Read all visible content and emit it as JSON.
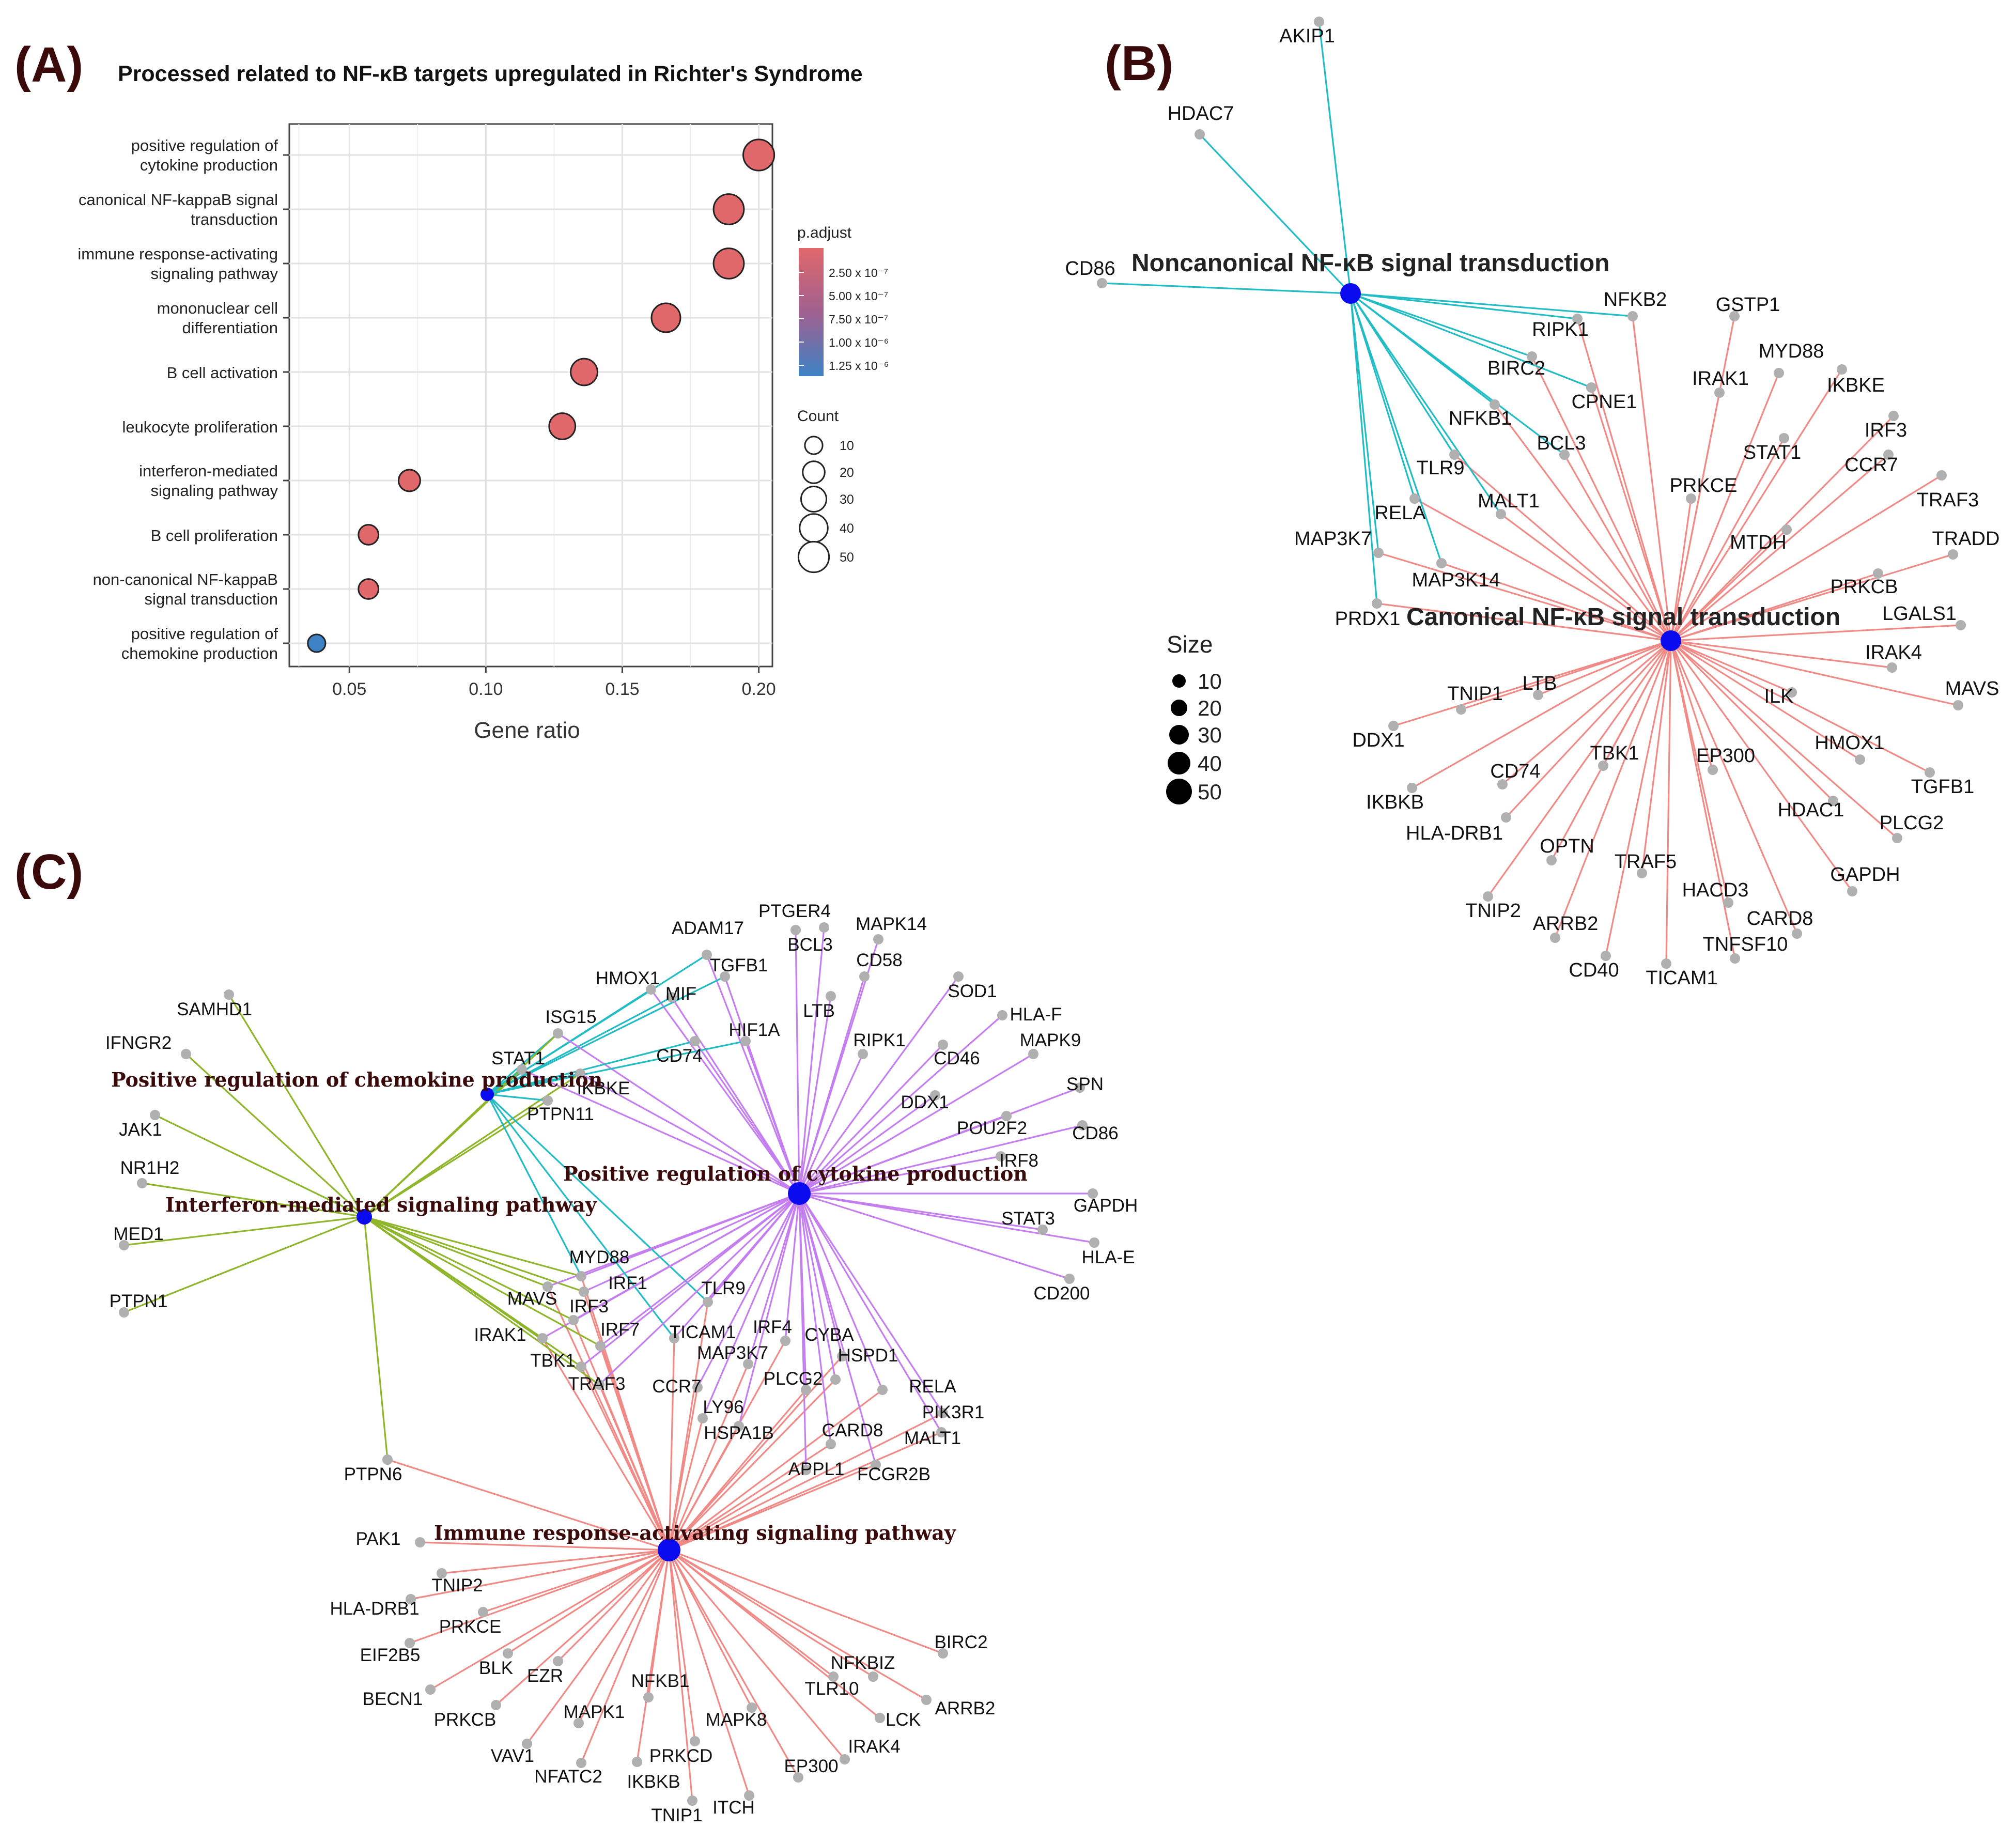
{
  "panels": {
    "a_letter": "(A)",
    "b_letter": "(B)",
    "c_letter": "(C)"
  },
  "panel_a": {
    "title": "Processed related to NF-κB targets upregulated in Richter's Syndrome",
    "legend_color_title": "p.adjust",
    "legend_color_ticks": [
      "2.50 x 10⁻⁷",
      "5.00 x 10⁻⁷",
      "7.50 x 10⁻⁷",
      "1.00 x 10⁻⁶",
      "1.25 x 10⁻⁶"
    ],
    "legend_size_title": "Count",
    "legend_size_ticks": [
      "10",
      "20",
      "30",
      "40",
      "50"
    ]
  },
  "chart_data": [
    {
      "type": "scatter",
      "subtype": "dot-plot",
      "title": "Processed related to NF-κB targets upregulated in Richter's Syndrome",
      "xlabel": "Gene ratio",
      "ylabel": "",
      "xlim": [
        0.028,
        0.205
      ],
      "xticks": [
        0.05,
        0.1,
        0.15,
        0.2
      ],
      "xtick_labels": [
        "0.05",
        "0.10",
        "0.15",
        "0.20"
      ],
      "grid": true,
      "points": [
        {
          "label_lines": [
            "positive regulation of",
            "cytokine production"
          ],
          "gene_ratio": 0.2,
          "count": 52,
          "p_adjust": 1e-07
        },
        {
          "label_lines": [
            "canonical NF-kappaB signal",
            "transduction"
          ],
          "gene_ratio": 0.189,
          "count": 49,
          "p_adjust": 1e-07
        },
        {
          "label_lines": [
            "immune response-activating",
            "signaling pathway"
          ],
          "gene_ratio": 0.189,
          "count": 49,
          "p_adjust": 1e-07
        },
        {
          "label_lines": [
            "mononuclear cell",
            "differentiation"
          ],
          "gene_ratio": 0.166,
          "count": 43,
          "p_adjust": 1e-07
        },
        {
          "label_lines": [
            "B cell activation"
          ],
          "gene_ratio": 0.136,
          "count": 35,
          "p_adjust": 1e-07
        },
        {
          "label_lines": [
            "leukocyte proliferation"
          ],
          "gene_ratio": 0.128,
          "count": 33,
          "p_adjust": 1e-07
        },
        {
          "label_lines": [
            "interferon-mediated",
            "signaling pathway"
          ],
          "gene_ratio": 0.072,
          "count": 19,
          "p_adjust": 1e-07
        },
        {
          "label_lines": [
            "B cell proliferation"
          ],
          "gene_ratio": 0.057,
          "count": 15,
          "p_adjust": 1e-07
        },
        {
          "label_lines": [
            "non-canonical NF-kappaB",
            "signal transduction"
          ],
          "gene_ratio": 0.057,
          "count": 15,
          "p_adjust": 1e-07
        },
        {
          "label_lines": [
            "positive regulation of",
            "chemokine production"
          ],
          "gene_ratio": 0.038,
          "count": 10,
          "p_adjust": 1.35e-06
        }
      ],
      "colors": {
        "low_p": "#e0676a",
        "high_p": "#3d82c4"
      }
    }
  ],
  "panel_b": {
    "size_legend_title": "Size",
    "size_legend_values": [
      "10",
      "20",
      "30",
      "40",
      "50"
    ],
    "hubs": [
      {
        "id": "noncanonical",
        "label": "Noncanonical NF-κB signal transduction",
        "edge_color": "#22bcc4"
      },
      {
        "id": "canonical",
        "label": "Canonical NF-κB signal transduction",
        "edge_color": "#f08a86"
      }
    ],
    "genes": [
      {
        "name": "AKIP1",
        "hubs": [
          "noncanonical"
        ]
      },
      {
        "name": "HDAC7",
        "hubs": [
          "noncanonical"
        ]
      },
      {
        "name": "CD86",
        "hubs": [
          "noncanonical"
        ]
      },
      {
        "name": "NFKB2",
        "hubs": [
          "noncanonical",
          "canonical"
        ]
      },
      {
        "name": "RIPK1",
        "hubs": [
          "noncanonical",
          "canonical"
        ]
      },
      {
        "name": "BIRC2",
        "hubs": [
          "noncanonical",
          "canonical"
        ]
      },
      {
        "name": "CPNE1",
        "hubs": [
          "noncanonical",
          "canonical"
        ]
      },
      {
        "name": "NFKB1",
        "hubs": [
          "noncanonical",
          "canonical"
        ]
      },
      {
        "name": "BCL3",
        "hubs": [
          "noncanonical",
          "canonical"
        ]
      },
      {
        "name": "TLR9",
        "hubs": [
          "noncanonical",
          "canonical"
        ]
      },
      {
        "name": "MALT1",
        "hubs": [
          "noncanonical",
          "canonical"
        ]
      },
      {
        "name": "RELA",
        "hubs": [
          "noncanonical",
          "canonical"
        ]
      },
      {
        "name": "MAP3K7",
        "hubs": [
          "noncanonical",
          "canonical"
        ]
      },
      {
        "name": "MAP3K14",
        "hubs": [
          "noncanonical",
          "canonical"
        ]
      },
      {
        "name": "PRDX1",
        "hubs": [
          "noncanonical",
          "canonical"
        ]
      },
      {
        "name": "GSTP1",
        "hubs": [
          "canonical"
        ]
      },
      {
        "name": "MYD88",
        "hubs": [
          "canonical"
        ]
      },
      {
        "name": "IRAK1",
        "hubs": [
          "canonical"
        ]
      },
      {
        "name": "IKBKE",
        "hubs": [
          "canonical"
        ]
      },
      {
        "name": "IRF3",
        "hubs": [
          "canonical"
        ]
      },
      {
        "name": "STAT1",
        "hubs": [
          "canonical"
        ]
      },
      {
        "name": "PRKCE",
        "hubs": [
          "canonical"
        ]
      },
      {
        "name": "CCR7",
        "hubs": [
          "canonical"
        ]
      },
      {
        "name": "TRAF3",
        "hubs": [
          "canonical"
        ]
      },
      {
        "name": "MTDH",
        "hubs": [
          "canonical"
        ]
      },
      {
        "name": "TRADD",
        "hubs": [
          "canonical"
        ]
      },
      {
        "name": "PRKCB",
        "hubs": [
          "canonical"
        ]
      },
      {
        "name": "LGALS1",
        "hubs": [
          "canonical"
        ]
      },
      {
        "name": "IRAK4",
        "hubs": [
          "canonical"
        ]
      },
      {
        "name": "MAVS",
        "hubs": [
          "canonical"
        ]
      },
      {
        "name": "ILK",
        "hubs": [
          "canonical"
        ]
      },
      {
        "name": "HMOX1",
        "hubs": [
          "canonical"
        ]
      },
      {
        "name": "TGFB1",
        "hubs": [
          "canonical"
        ]
      },
      {
        "name": "HDAC1",
        "hubs": [
          "canonical"
        ]
      },
      {
        "name": "PLCG2",
        "hubs": [
          "canonical"
        ]
      },
      {
        "name": "GAPDH",
        "hubs": [
          "canonical"
        ]
      },
      {
        "name": "EP300",
        "hubs": [
          "canonical"
        ]
      },
      {
        "name": "CARD8",
        "hubs": [
          "canonical"
        ]
      },
      {
        "name": "HACD3",
        "hubs": [
          "canonical"
        ]
      },
      {
        "name": "TNFSF10",
        "hubs": [
          "canonical"
        ]
      },
      {
        "name": "TICAM1",
        "hubs": [
          "canonical"
        ]
      },
      {
        "name": "TRAF5",
        "hubs": [
          "canonical"
        ]
      },
      {
        "name": "CD40",
        "hubs": [
          "canonical"
        ]
      },
      {
        "name": "OPTN",
        "hubs": [
          "canonical"
        ]
      },
      {
        "name": "ARRB2",
        "hubs": [
          "canonical"
        ]
      },
      {
        "name": "TBK1",
        "hubs": [
          "canonical"
        ]
      },
      {
        "name": "TNIP2",
        "hubs": [
          "canonical"
        ]
      },
      {
        "name": "HLA-DRB1",
        "hubs": [
          "canonical"
        ]
      },
      {
        "name": "CD74",
        "hubs": [
          "canonical"
        ]
      },
      {
        "name": "IKBKB",
        "hubs": [
          "canonical"
        ]
      },
      {
        "name": "LTB",
        "hubs": [
          "canonical"
        ]
      },
      {
        "name": "TNIP1",
        "hubs": [
          "canonical"
        ]
      },
      {
        "name": "DDX1",
        "hubs": [
          "canonical"
        ]
      }
    ]
  },
  "panel_c": {
    "hubs": [
      {
        "id": "chemokine",
        "label": "Positive regulation of chemokine production",
        "edge_color": "#22bcc4"
      },
      {
        "id": "interferon",
        "label": "Interferon-mediated signaling pathway",
        "edge_color": "#8fb52a"
      },
      {
        "id": "cytokine",
        "label": "Positive regulation of cytokine production",
        "edge_color": "#c47ef0"
      },
      {
        "id": "immune",
        "label": "Immune response-activating signaling pathway",
        "edge_color": "#f08a86"
      }
    ],
    "genes": [
      {
        "name": "SAMHD1",
        "hubs": [
          "interferon"
        ]
      },
      {
        "name": "IFNGR2",
        "hubs": [
          "interferon"
        ]
      },
      {
        "name": "JAK1",
        "hubs": [
          "interferon"
        ]
      },
      {
        "name": "NR1H2",
        "hubs": [
          "interferon"
        ]
      },
      {
        "name": "MED1",
        "hubs": [
          "interferon"
        ]
      },
      {
        "name": "PTPN1",
        "hubs": [
          "interferon"
        ]
      },
      {
        "name": "PTPN6",
        "hubs": [
          "interferon",
          "immune"
        ]
      },
      {
        "name": "ADAM17",
        "hubs": [
          "chemokine",
          "cytokine"
        ]
      },
      {
        "name": "HMOX1",
        "hubs": [
          "chemokine",
          "cytokine"
        ]
      },
      {
        "name": "TGFB1",
        "hubs": [
          "chemokine",
          "cytokine"
        ]
      },
      {
        "name": "MIF",
        "hubs": [
          "chemokine",
          "cytokine"
        ]
      },
      {
        "name": "ISG15",
        "hubs": [
          "chemokine",
          "interferon",
          "cytokine"
        ]
      },
      {
        "name": "STAT1",
        "hubs": [
          "chemokine",
          "interferon",
          "cytokine"
        ]
      },
      {
        "name": "CD74",
        "hubs": [
          "chemokine",
          "cytokine"
        ]
      },
      {
        "name": "HIF1A",
        "hubs": [
          "chemokine",
          "cytokine"
        ]
      },
      {
        "name": "IKBKE",
        "hubs": [
          "chemokine",
          "interferon",
          "cytokine"
        ]
      },
      {
        "name": "PTPN11",
        "hubs": [
          "chemokine",
          "interferon"
        ]
      },
      {
        "name": "PTGER4",
        "hubs": [
          "cytokine"
        ]
      },
      {
        "name": "BCL3",
        "hubs": [
          "cytokine"
        ]
      },
      {
        "name": "MAPK14",
        "hubs": [
          "cytokine"
        ]
      },
      {
        "name": "CD58",
        "hubs": [
          "cytokine"
        ]
      },
      {
        "name": "LTB",
        "hubs": [
          "cytokine"
        ]
      },
      {
        "name": "RIPK1",
        "hubs": [
          "cytokine"
        ]
      },
      {
        "name": "SOD1",
        "hubs": [
          "cytokine"
        ]
      },
      {
        "name": "HLA-F",
        "hubs": [
          "cytokine"
        ]
      },
      {
        "name": "MAPK9",
        "hubs": [
          "cytokine"
        ]
      },
      {
        "name": "CD46",
        "hubs": [
          "cytokine"
        ]
      },
      {
        "name": "SPN",
        "hubs": [
          "cytokine"
        ]
      },
      {
        "name": "DDX1",
        "hubs": [
          "cytokine"
        ]
      },
      {
        "name": "POU2F2",
        "hubs": [
          "cytokine"
        ]
      },
      {
        "name": "CD86",
        "hubs": [
          "cytokine"
        ]
      },
      {
        "name": "IRF8",
        "hubs": [
          "cytokine"
        ]
      },
      {
        "name": "GAPDH",
        "hubs": [
          "cytokine"
        ]
      },
      {
        "name": "STAT3",
        "hubs": [
          "cytokine"
        ]
      },
      {
        "name": "HLA-E",
        "hubs": [
          "cytokine"
        ]
      },
      {
        "name": "CD200",
        "hubs": [
          "cytokine"
        ]
      },
      {
        "name": "MYD88",
        "hubs": [
          "chemokine",
          "interferon",
          "cytokine",
          "immune"
        ]
      },
      {
        "name": "IRF1",
        "hubs": [
          "interferon",
          "cytokine",
          "immune"
        ]
      },
      {
        "name": "TLR9",
        "hubs": [
          "chemokine",
          "cytokine",
          "immune"
        ]
      },
      {
        "name": "MAVS",
        "hubs": [
          "interferon",
          "cytokine",
          "immune"
        ]
      },
      {
        "name": "IRF3",
        "hubs": [
          "interferon",
          "cytokine",
          "immune"
        ]
      },
      {
        "name": "TICAM1",
        "hubs": [
          "chemokine",
          "cytokine",
          "immune"
        ]
      },
      {
        "name": "IRF4",
        "hubs": [
          "cytokine",
          "immune"
        ]
      },
      {
        "name": "CYBA",
        "hubs": [
          "cytokine",
          "immune"
        ]
      },
      {
        "name": "IRAK1",
        "hubs": [
          "interferon",
          "cytokine",
          "immune"
        ]
      },
      {
        "name": "IRF7",
        "hubs": [
          "interferon",
          "cytokine",
          "immune"
        ]
      },
      {
        "name": "MAP3K7",
        "hubs": [
          "cytokine",
          "immune"
        ]
      },
      {
        "name": "HSPD1",
        "hubs": [
          "cytokine",
          "immune"
        ]
      },
      {
        "name": "TBK1",
        "hubs": [
          "interferon",
          "cytokine",
          "immune"
        ]
      },
      {
        "name": "TRAF3",
        "hubs": [
          "interferon",
          "cytokine",
          "immune"
        ]
      },
      {
        "name": "CCR7",
        "hubs": [
          "cytokine",
          "immune"
        ]
      },
      {
        "name": "PLCG2",
        "hubs": [
          "cytokine",
          "immune"
        ]
      },
      {
        "name": "RELA",
        "hubs": [
          "cytokine",
          "immune"
        ]
      },
      {
        "name": "LY96",
        "hubs": [
          "cytokine",
          "immune"
        ]
      },
      {
        "name": "PIK3R1",
        "hubs": [
          "cytokine",
          "immune"
        ]
      },
      {
        "name": "HSPA1B",
        "hubs": [
          "cytokine",
          "immune"
        ]
      },
      {
        "name": "CARD8",
        "hubs": [
          "cytokine",
          "immune"
        ]
      },
      {
        "name": "MALT1",
        "hubs": [
          "cytokine",
          "immune"
        ]
      },
      {
        "name": "APPL1",
        "hubs": [
          "cytokine",
          "immune"
        ]
      },
      {
        "name": "FCGR2B",
        "hubs": [
          "cytokine",
          "immune"
        ]
      },
      {
        "name": "PAK1",
        "hubs": [
          "immune"
        ]
      },
      {
        "name": "TNIP2",
        "hubs": [
          "immune"
        ]
      },
      {
        "name": "HLA-DRB1",
        "hubs": [
          "immune"
        ]
      },
      {
        "name": "PRKCE",
        "hubs": [
          "immune"
        ]
      },
      {
        "name": "EIF2B5",
        "hubs": [
          "immune"
        ]
      },
      {
        "name": "BLK",
        "hubs": [
          "immune"
        ]
      },
      {
        "name": "EZR",
        "hubs": [
          "immune"
        ]
      },
      {
        "name": "BECN1",
        "hubs": [
          "immune"
        ]
      },
      {
        "name": "PRKCB",
        "hubs": [
          "immune"
        ]
      },
      {
        "name": "MAPK1",
        "hubs": [
          "immune"
        ]
      },
      {
        "name": "NFKB1",
        "hubs": [
          "immune"
        ]
      },
      {
        "name": "VAV1",
        "hubs": [
          "immune"
        ]
      },
      {
        "name": "NFATC2",
        "hubs": [
          "immune"
        ]
      },
      {
        "name": "IKBKB",
        "hubs": [
          "immune"
        ]
      },
      {
        "name": "PRKCD",
        "hubs": [
          "immune"
        ]
      },
      {
        "name": "TNIP1",
        "hubs": [
          "immune"
        ]
      },
      {
        "name": "ITCH",
        "hubs": [
          "immune"
        ]
      },
      {
        "name": "MAPK8",
        "hubs": [
          "immune"
        ]
      },
      {
        "name": "EP300",
        "hubs": [
          "immune"
        ]
      },
      {
        "name": "IRAK4",
        "hubs": [
          "immune"
        ]
      },
      {
        "name": "LCK",
        "hubs": [
          "immune"
        ]
      },
      {
        "name": "TLR10",
        "hubs": [
          "immune"
        ]
      },
      {
        "name": "NFKBIZ",
        "hubs": [
          "immune"
        ]
      },
      {
        "name": "ARRB2",
        "hubs": [
          "immune"
        ]
      },
      {
        "name": "BIRC2",
        "hubs": [
          "immune"
        ]
      }
    ]
  }
}
